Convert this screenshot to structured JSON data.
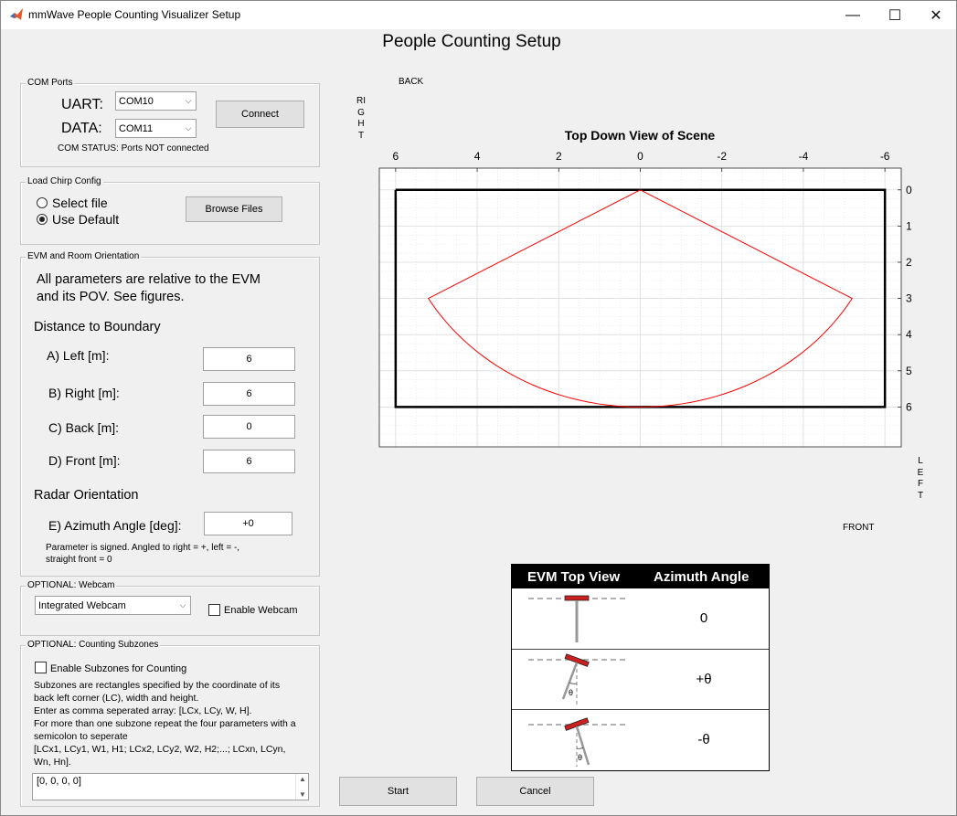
{
  "window": {
    "title": "mmWave People Counting Visualizer Setup",
    "minimize": "—",
    "maximize": "☐",
    "close": "✕"
  },
  "page_title": "People Counting Setup",
  "com_ports": {
    "title": "COM Ports",
    "uart_label": "UART:",
    "uart_value": "COM10",
    "data_label": "DATA:",
    "data_value": "COM11",
    "connect": "Connect",
    "status": "COM STATUS: Ports NOT connected"
  },
  "chirp": {
    "title": "Load Chirp Config",
    "select_file": "Select file",
    "use_default": "Use Default",
    "selected": "use_default",
    "browse": "Browse Files"
  },
  "orientation": {
    "title": "EVM and Room Orientation",
    "intro_1": "All parameters are relative to the EVM",
    "intro_2": "and its POV.  See figures.",
    "distance_heading": "Distance to Boundary",
    "left_label": "A) Left [m]:",
    "left_value": "6",
    "right_label": "B) Right [m]:",
    "right_value": "6",
    "back_label": "C) Back [m]:",
    "back_value": "0",
    "front_label": "D) Front [m]:",
    "front_value": "6",
    "radar_heading": "Radar Orientation",
    "azimuth_label": "E) Azimuth Angle [deg]:",
    "azimuth_value": "+0",
    "note_1": "Parameter is signed. Angled to right = +, left = -,",
    "note_2": "straight front = 0"
  },
  "webcam": {
    "title": "OPTIONAL: Webcam",
    "device": "Integrated Webcam",
    "enable": "Enable Webcam",
    "enabled": false
  },
  "subzones": {
    "title": "OPTIONAL: Counting Subzones",
    "enable": "Enable Subzones for Counting",
    "enabled": false,
    "desc": [
      "Subzones are rectangles specified by the coordinate of its",
      "back left corner (LC), width and height.",
      "Enter as comma seperated array: [LCx, LCy, W, H].",
      "For more than one subzone repeat the four parameters with a",
      "semicolon to seperate",
      "[LCx1, LCy1, W1, H1; LCx2, LCy2, W2, H2;...; LCxn, LCyn,",
      "Wn, Hn]."
    ],
    "value": "[0, 0, 0, 0]"
  },
  "scene": {
    "back": "BACK",
    "front": "FRONT",
    "right": "RIGHT",
    "left": "LEFT"
  },
  "chart_data": {
    "type": "line",
    "title": "Top Down View of Scene",
    "xlabel": "",
    "ylabel": "",
    "xlim": [
      6.4,
      -6.4
    ],
    "ylim": [
      -0.6,
      7.1
    ],
    "x_axis_position": "top",
    "y_axis_position": "right",
    "xticks": [
      6,
      4,
      2,
      0,
      -2,
      -4,
      -6
    ],
    "yticks": [
      0,
      1,
      2,
      3,
      4,
      5,
      6
    ],
    "grid": true,
    "minor_grid": true,
    "series": [
      {
        "role": "boundary",
        "color": "#000000",
        "x": [
          6,
          -6,
          -6,
          6,
          6
        ],
        "y": [
          0,
          0,
          6,
          6,
          0
        ]
      },
      {
        "role": "field_of_view",
        "color": "#ff0000",
        "range": 6,
        "half_angle_deg": 60,
        "azimuth_deg": 0
      }
    ]
  },
  "evm": {
    "col1": "EVM Top View",
    "col2": "Azimuth Angle",
    "row1": "0",
    "row2": "+θ",
    "row3": "-θ",
    "theta": "θ"
  },
  "actions": {
    "start": "Start",
    "cancel": "Cancel"
  },
  "colors": {
    "accent_red": "#cc1f1f",
    "fov_red": "#ff0000",
    "grid": "#dcdcdc"
  }
}
